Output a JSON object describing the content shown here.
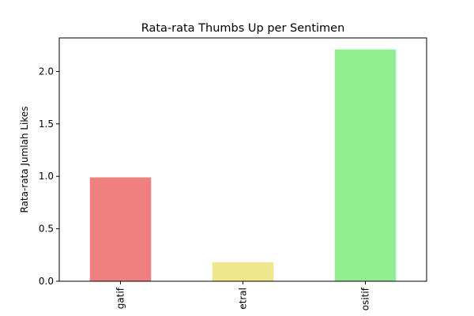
{
  "chart_data": {
    "type": "bar",
    "title": "Rata-rata Thumbs Up per Sentimen",
    "xlabel": "",
    "ylabel": "Rata-rata Jumlah Likes",
    "categories": [
      "Negatif",
      "Netral",
      "Positif"
    ],
    "visible_tick_labels": [
      "gatif",
      "etral",
      "ositif"
    ],
    "values": [
      0.99,
      0.18,
      2.21
    ],
    "colors": [
      "#f08080",
      "#f0e68c",
      "#90ee90"
    ],
    "ylim": [
      0,
      2.32
    ],
    "yticks": [
      0.0,
      0.5,
      1.0,
      1.5,
      2.0
    ],
    "ytick_labels": [
      "0.0",
      "0.5",
      "1.0",
      "1.5",
      "2.0"
    ],
    "grid": false,
    "legend": "none"
  }
}
